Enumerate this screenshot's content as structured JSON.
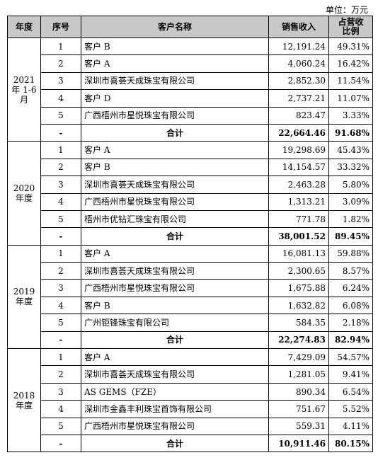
{
  "unit_label": "单位：万元",
  "headers": {
    "year": "年度",
    "seq": "序号",
    "customer": "客户名称",
    "revenue": "销售收入",
    "ratio_line1": "占营收",
    "ratio_line2": "比例"
  },
  "groups": [
    {
      "year_lines": [
        "2021",
        "年 1-6",
        "月"
      ],
      "rows": [
        {
          "seq": "1",
          "name": "客户 B",
          "revenue": "12,191.24",
          "ratio": "49.31%"
        },
        {
          "seq": "2",
          "name": "客户 A",
          "revenue": "4,060.24",
          "ratio": "16.42%"
        },
        {
          "seq": "3",
          "name": "深圳市喜荟天成珠宝有限公司",
          "revenue": "2,852.30",
          "ratio": "11.54%"
        },
        {
          "seq": "4",
          "name": "客户 D",
          "revenue": "2,737.21",
          "ratio": "11.07%"
        },
        {
          "seq": "5",
          "name": "广西梧州市星悦珠宝有限公司",
          "revenue": "823.47",
          "ratio": "3.33%"
        }
      ],
      "total": {
        "seq": "-",
        "label": "合计",
        "revenue": "22,664.46",
        "ratio": "91.68%"
      }
    },
    {
      "year_lines": [
        "2020",
        "年度"
      ],
      "rows": [
        {
          "seq": "1",
          "name": "客户 A",
          "revenue": "19,298.69",
          "ratio": "45.43%"
        },
        {
          "seq": "2",
          "name": "客户 B",
          "revenue": "14,154.57",
          "ratio": "33.32%"
        },
        {
          "seq": "3",
          "name": "深圳市喜荟天成珠宝有限公司",
          "revenue": "2,463.28",
          "ratio": "5.80%"
        },
        {
          "seq": "4",
          "name": "广西梧州市星悦珠宝有限公司",
          "revenue": "1,313.21",
          "ratio": "3.09%"
        },
        {
          "seq": "5",
          "name": "梧州市优钻汇珠宝有限公司",
          "revenue": "771.78",
          "ratio": "1.82%"
        }
      ],
      "total": {
        "seq": "-",
        "label": "合计",
        "revenue": "38,001.52",
        "ratio": "89.45%"
      }
    },
    {
      "year_lines": [
        "2019",
        "年度"
      ],
      "rows": [
        {
          "seq": "1",
          "name": "客户 A",
          "revenue": "16,081.13",
          "ratio": "59.88%"
        },
        {
          "seq": "2",
          "name": "深圳市喜荟天成珠宝有限公司",
          "revenue": "2,300.65",
          "ratio": "8.57%"
        },
        {
          "seq": "3",
          "name": "广西梧州市星悦珠宝有限公司",
          "revenue": "1,675.88",
          "ratio": "6.24%"
        },
        {
          "seq": "4",
          "name": "客户 B",
          "revenue": "1,632.82",
          "ratio": "6.08%"
        },
        {
          "seq": "5",
          "name": "广州钜锋珠宝有限公司",
          "revenue": "584.35",
          "ratio": "2.18%"
        }
      ],
      "total": {
        "seq": "-",
        "label": "合计",
        "revenue": "22,274.83",
        "ratio": "82.94%"
      }
    },
    {
      "year_lines": [
        "2018",
        "年度"
      ],
      "rows": [
        {
          "seq": "1",
          "name": "客户 A",
          "revenue": "7,429.09",
          "ratio": "54.57%"
        },
        {
          "seq": "2",
          "name": "深圳市喜荟天成珠宝有限公司",
          "revenue": "1,281.05",
          "ratio": "9.41%"
        },
        {
          "seq": "3",
          "name": "AS GEMS（FZE）",
          "revenue": "890.34",
          "ratio": "6.54%"
        },
        {
          "seq": "4",
          "name": "深圳市金鑫丰利珠宝首饰有限公司",
          "revenue": "751.67",
          "ratio": "5.52%"
        },
        {
          "seq": "5",
          "name": "广西梧州市星悦珠宝有限公司",
          "revenue": "559.31",
          "ratio": "4.11%"
        }
      ],
      "total": {
        "seq": "-",
        "label": "合计",
        "revenue": "10,911.46",
        "ratio": "80.15%"
      }
    }
  ]
}
